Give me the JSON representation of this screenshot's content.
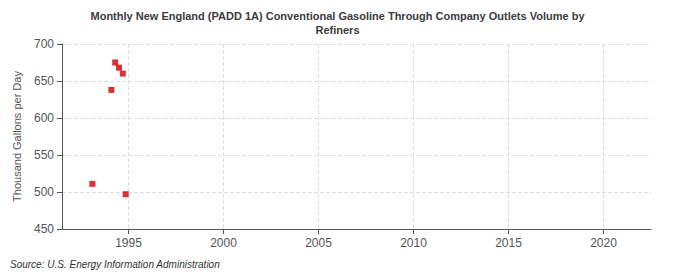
{
  "chart_data": {
    "type": "scatter",
    "title": "Monthly New England (PADD 1A) Conventional Gasoline Through Company Outlets Volume by\nRefiners",
    "ylabel": "Thousand Gallons per Day",
    "annotation": "Source: U.S. Energy Information Administration",
    "x": [
      1993.1,
      1994.1,
      1994.3,
      1994.5,
      1994.7,
      1994.85
    ],
    "values": [
      511,
      638,
      675,
      668,
      660,
      497
    ],
    "color": "#cc0000",
    "marker": "square",
    "xlim": [
      1991.5,
      2022.5
    ],
    "xticks": [
      1995,
      2000,
      2005,
      2010,
      2015,
      2020
    ],
    "ylim": [
      450,
      700
    ],
    "yticks": [
      450,
      500,
      550,
      600,
      650,
      700
    ],
    "grid": true
  }
}
